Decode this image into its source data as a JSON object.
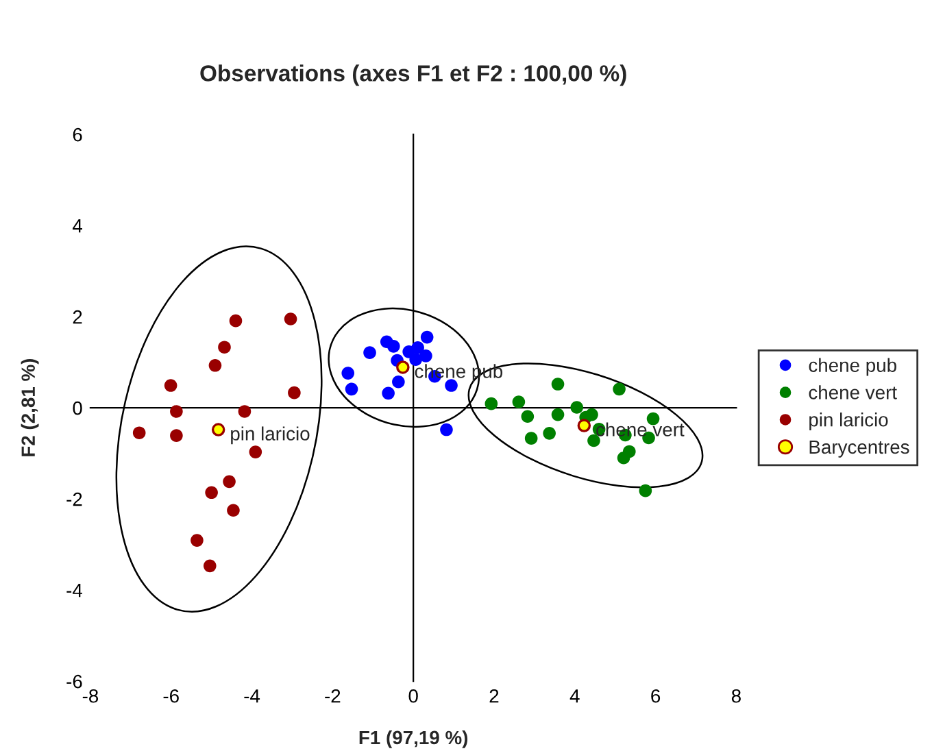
{
  "chart_data": {
    "type": "scatter",
    "title": "Observations (axes F1 et F2 : 100,00 %)",
    "xlabel": "F1 (97,19 %)",
    "ylabel": "F2 (2,81 %)",
    "xlim": [
      -8,
      8
    ],
    "xticks": [
      -8,
      -6,
      -4,
      -2,
      0,
      2,
      4,
      6,
      8
    ],
    "ylim": [
      -6,
      6
    ],
    "yticks": [
      -6,
      -4,
      -2,
      0,
      2,
      4,
      6
    ],
    "legend": "right",
    "marker": "circle",
    "series": [
      {
        "name": "chene pub",
        "color": "#0000ff",
        "x": [
          -0.66,
          -0.49,
          0.34,
          -1.08,
          -0.11,
          0.11,
          0.06,
          0.31,
          -0.4,
          -1.62,
          -1.53,
          0.53,
          0.94,
          -0.37,
          -0.62,
          0.82
        ],
        "values": [
          1.45,
          1.35,
          1.55,
          1.21,
          1.23,
          1.32,
          1.06,
          1.14,
          1.04,
          0.76,
          0.41,
          0.69,
          0.49,
          0.57,
          0.32,
          -0.48
        ]
      },
      {
        "name": "chene vert",
        "color": "#008000",
        "x": [
          1.93,
          2.61,
          3.58,
          5.1,
          2.83,
          3.58,
          4.05,
          4.27,
          4.42,
          5.94,
          2.92,
          3.37,
          4.6,
          4.47,
          5.25,
          5.83,
          5.35,
          5.21,
          5.75
        ],
        "values": [
          0.09,
          0.13,
          0.52,
          0.41,
          -0.19,
          -0.15,
          0.01,
          -0.21,
          -0.15,
          -0.24,
          -0.67,
          -0.56,
          -0.47,
          -0.72,
          -0.6,
          -0.66,
          -0.96,
          -1.1,
          -1.82
        ]
      },
      {
        "name": "pin laricio",
        "color": "#990000",
        "x": [
          -4.4,
          -3.04,
          -4.68,
          -4.91,
          -6.01,
          -2.95,
          -5.87,
          -4.18,
          -6.79,
          -5.87,
          -3.91,
          -4.56,
          -5.0,
          -4.46,
          -5.36,
          -5.04
        ],
        "values": [
          1.91,
          1.95,
          1.33,
          0.93,
          0.49,
          0.33,
          -0.08,
          -0.08,
          -0.55,
          -0.61,
          -0.97,
          -1.62,
          -1.86,
          -2.25,
          -2.91,
          -3.47
        ]
      },
      {
        "name": "Barycentres",
        "color": "#ffff00",
        "x": [
          -0.26,
          4.23,
          -4.83
        ],
        "values": [
          0.89,
          -0.39,
          -0.48
        ]
      }
    ],
    "annotations": [
      {
        "text": "chene pub",
        "x": -0.26,
        "y": 0.89
      },
      {
        "text": "chene vert",
        "x": 4.23,
        "y": -0.39
      },
      {
        "text": "pin laricio",
        "x": -4.83,
        "y": -0.48
      }
    ]
  }
}
